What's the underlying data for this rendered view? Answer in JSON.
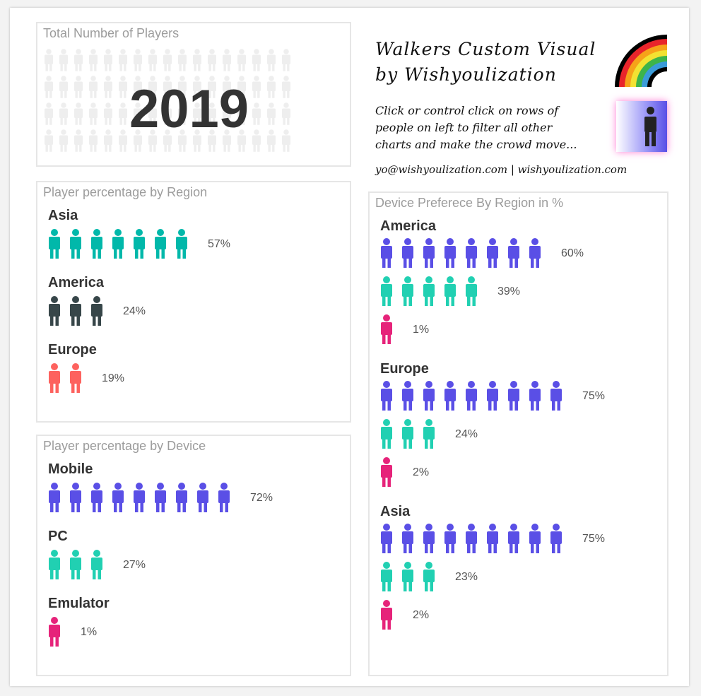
{
  "colors": {
    "teal": "#01b8aa",
    "dark": "#374649",
    "salmon": "#fd625e",
    "purple": "#5a4fe6",
    "aqua": "#21d0b2",
    "pink": "#e6237a",
    "ghost": "#eeeeee"
  },
  "header": {
    "title_line1": "Walkers Custom Visual",
    "title_line2": "by Wishyoulization",
    "note_line1": "Click or control click on rows of",
    "note_line2": "people on left to filter all other",
    "note_line3": "charts and make the crowd move...",
    "contact": "yo@wishyoulization.com | wishyoulization.com",
    "icons": [
      "rainbow-logo-icon",
      "person-glow-icon"
    ]
  },
  "chart_data": [
    {
      "type": "card",
      "title": "Total Number of Players",
      "value": "2019"
    },
    {
      "type": "pictogram",
      "title": "Player percentage by Region",
      "categories": [
        "Asia",
        "America",
        "Europe"
      ],
      "values": [
        57,
        24,
        19
      ],
      "labels": [
        "57%",
        "24%",
        "19%"
      ],
      "colors": [
        "#01b8aa",
        "#374649",
        "#fd625e"
      ]
    },
    {
      "type": "pictogram",
      "title": "Player percentage by Device",
      "categories": [
        "Mobile",
        "PC",
        "Emulator"
      ],
      "values": [
        72,
        27,
        1
      ],
      "labels": [
        "72%",
        "27%",
        "1%"
      ],
      "colors": [
        "#5a4fe6",
        "#21d0b2",
        "#e6237a"
      ]
    },
    {
      "type": "pictogram",
      "title": "Device Preferece By Region in %",
      "groups": [
        {
          "name": "America",
          "rows": [
            {
              "value": 60,
              "label": "60%",
              "color": "#5a4fe6"
            },
            {
              "value": 39,
              "label": "39%",
              "color": "#21d0b2"
            },
            {
              "value": 1,
              "label": "1%",
              "color": "#e6237a"
            }
          ]
        },
        {
          "name": "Europe",
          "rows": [
            {
              "value": 75,
              "label": "75%",
              "color": "#5a4fe6"
            },
            {
              "value": 24,
              "label": "24%",
              "color": "#21d0b2"
            },
            {
              "value": 2,
              "label": "2%",
              "color": "#e6237a"
            }
          ]
        },
        {
          "name": "Asia",
          "rows": [
            {
              "value": 75,
              "label": "75%",
              "color": "#5a4fe6"
            },
            {
              "value": 23,
              "label": "23%",
              "color": "#21d0b2"
            },
            {
              "value": 2,
              "label": "2%",
              "color": "#e6237a"
            }
          ]
        }
      ]
    }
  ]
}
